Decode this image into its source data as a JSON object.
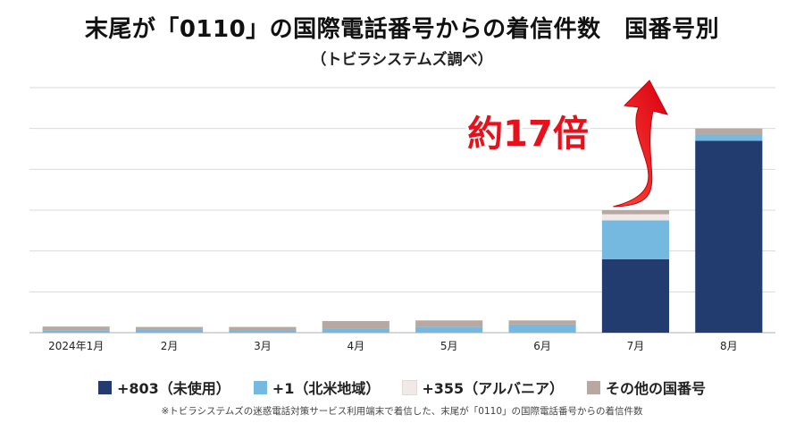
{
  "chart_data": {
    "type": "bar",
    "stacked": true,
    "title": "末尾が「0110」の国際電話番号からの着信件数　国番号別",
    "subtitle": "（トビラシステムズ調べ）",
    "categories": [
      "2024年1月",
      "2月",
      "3月",
      "4月",
      "5月",
      "6月",
      "7月",
      "8月"
    ],
    "series": [
      {
        "name": "+803（未使用）",
        "color": "#233c70",
        "values": [
          0,
          0,
          0,
          0,
          0,
          0,
          36,
          94
        ]
      },
      {
        "name": "+1（北米地域）",
        "color": "#76b9e0",
        "values": [
          1,
          1.5,
          1.3,
          2,
          3,
          4,
          19,
          3
        ]
      },
      {
        "name": "+355（アルバニア）",
        "color": "#f0e9e6",
        "values": [
          0,
          0,
          0,
          0,
          0,
          0,
          3,
          0
        ]
      },
      {
        "name": "その他の国番号",
        "color": "#b9a8a1",
        "values": [
          2,
          1.3,
          1.5,
          3.7,
          3,
          2,
          2,
          3
        ]
      }
    ],
    "ylim": [
      0,
      120
    ],
    "grid": true,
    "legend": "bottom",
    "annotation": {
      "text": "約17倍",
      "color": "#e8101a"
    }
  },
  "footnote": "※トビラシステムズの迷惑電話対策サービス利用端末で着信した、末尾が「0110」の国際電話番号からの着信件数"
}
